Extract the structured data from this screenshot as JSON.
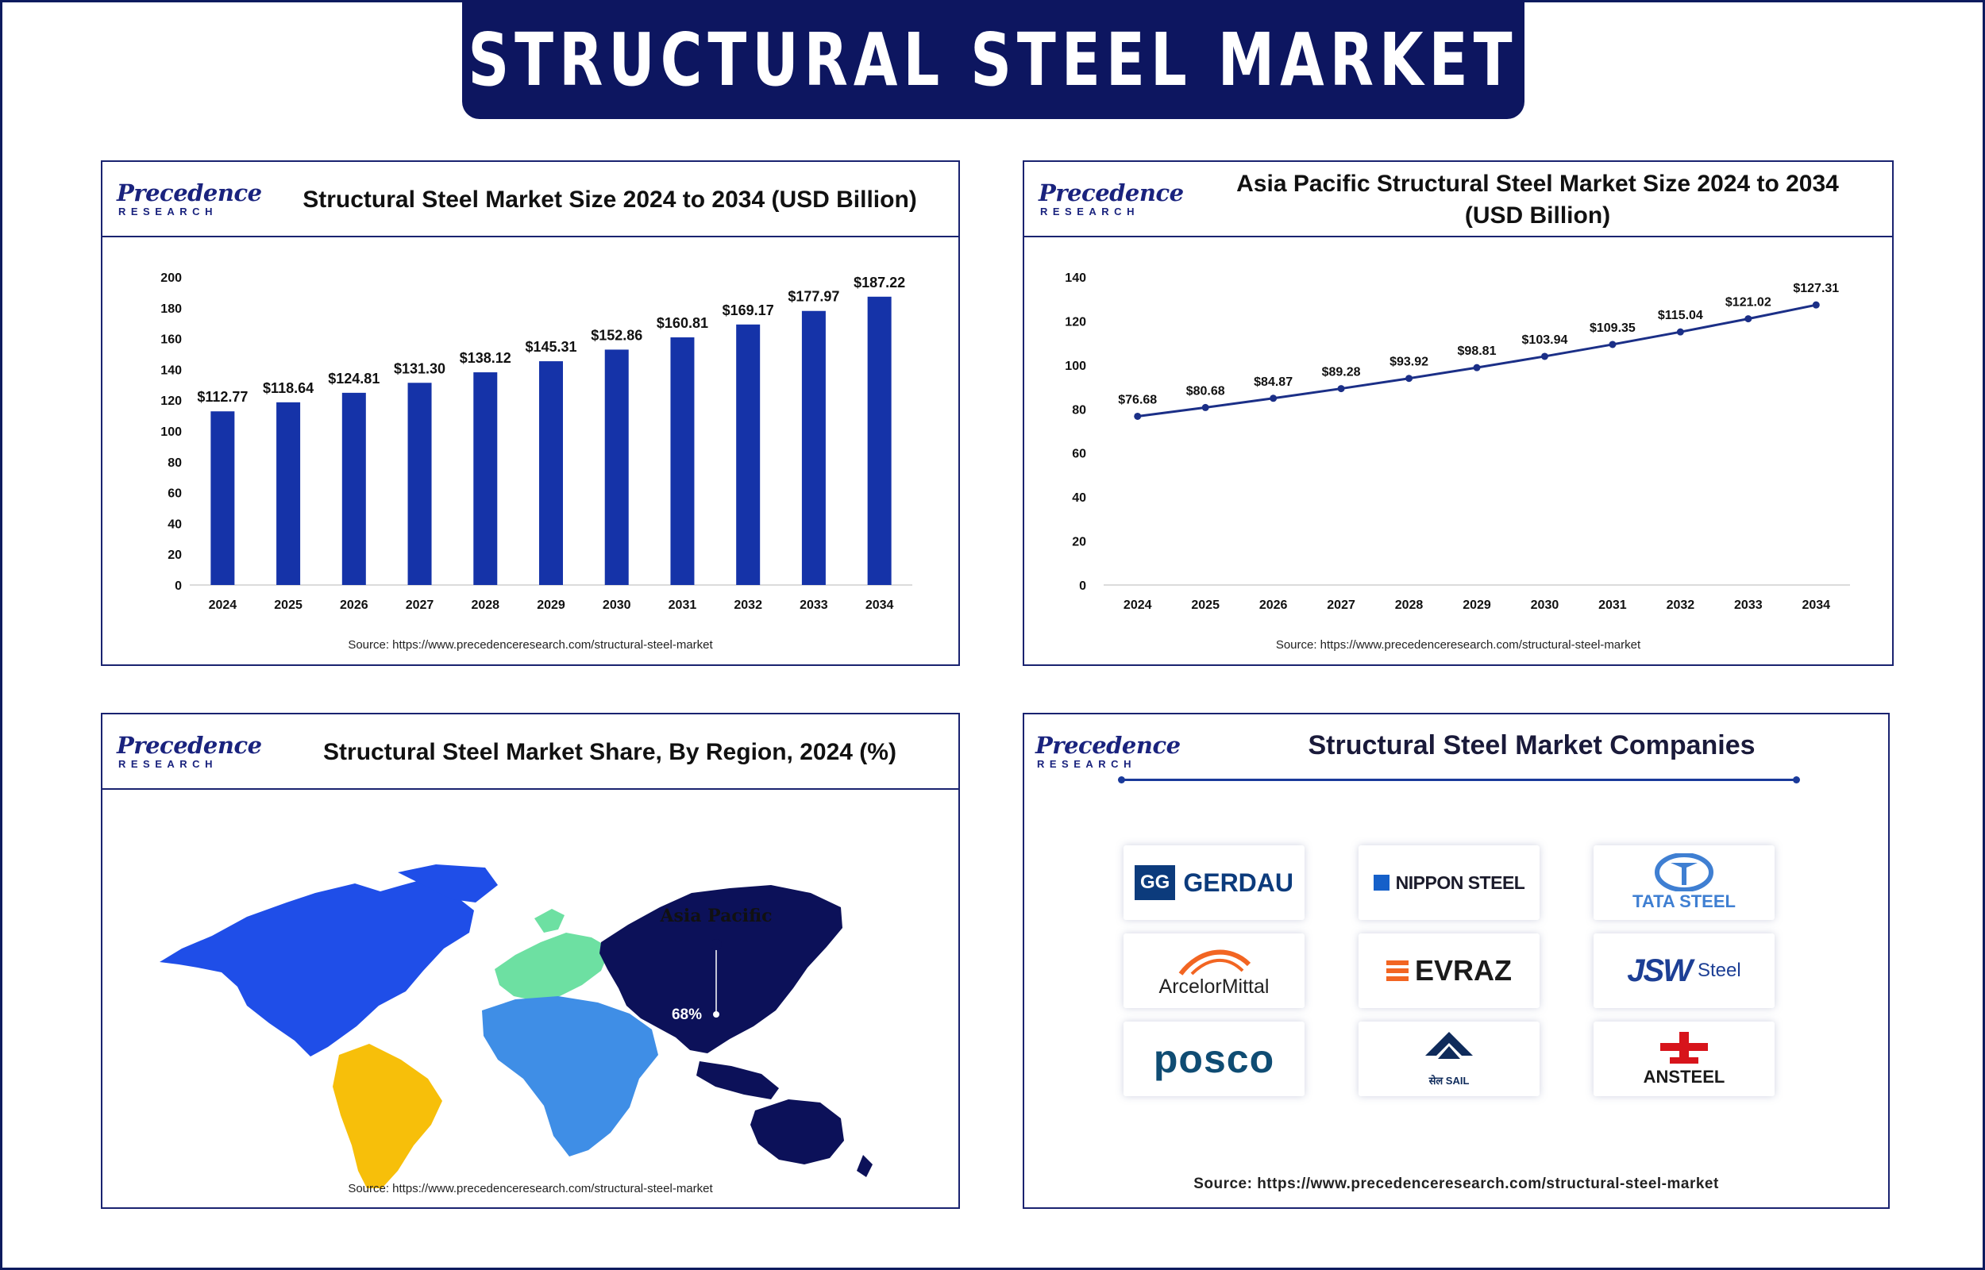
{
  "page_title": "STRUCTURAL STEEL MARKET",
  "brand": {
    "name": "Precedence",
    "sub": "RESEARCH"
  },
  "colors": {
    "navy": "#0d1660",
    "bar": "#1533a8",
    "line": "#1b2f87"
  },
  "panels": {
    "bar": {
      "title": "Structural Steel Market Size 2024 to 2034 (USD Billion)",
      "source": "Source: https://www.precedenceresearch.com/structural-steel-market"
    },
    "line": {
      "title_line1": "Asia Pacific Structural Steel Market Size 2024 to 2034",
      "title_line2": "(USD Billion)",
      "source": "Source: https://www.precedenceresearch.com/structural-steel-market"
    },
    "map": {
      "title": "Structural Steel Market Share, By Region, 2024 (%)",
      "region_label": "Asia Pacific",
      "share_label": "68%",
      "source": "Source: https://www.precedenceresearch.com/structural-steel-market"
    },
    "companies": {
      "title": "Structural Steel Market Companies",
      "source": "Source: https://www.precedenceresearch.com/structural-steel-market",
      "items": [
        {
          "name": "GERDAU",
          "mark": "GG"
        },
        {
          "name": "NIPPON STEEL"
        },
        {
          "name": "TATA STEEL"
        },
        {
          "name": "ArcelorMittal"
        },
        {
          "name": "EVRAZ"
        },
        {
          "name": "JSW",
          "suffix": "Steel"
        },
        {
          "name": "posco"
        },
        {
          "name": "सेल SAIL"
        },
        {
          "name": "ANSTEEL"
        }
      ]
    }
  },
  "chart_data": [
    {
      "type": "bar",
      "title": "Structural Steel Market Size 2024 to 2034 (USD Billion)",
      "categories": [
        "2024",
        "2025",
        "2026",
        "2027",
        "2028",
        "2029",
        "2030",
        "2031",
        "2032",
        "2033",
        "2034"
      ],
      "values": [
        112.77,
        118.64,
        124.81,
        131.3,
        138.12,
        145.31,
        152.86,
        160.81,
        169.17,
        177.97,
        187.22
      ],
      "labels": [
        "$112.77",
        "$118.64",
        "$124.81",
        "$131.30",
        "$138.12",
        "$145.31",
        "$152.86",
        "$160.81",
        "$169.17",
        "$177.97",
        "$187.22"
      ],
      "ylim": [
        0,
        200
      ],
      "yticks": [
        0,
        20,
        40,
        60,
        80,
        100,
        120,
        140,
        160,
        180,
        200
      ],
      "grid": false,
      "color": "#1533a8"
    },
    {
      "type": "line",
      "title": "Asia Pacific Structural Steel Market Size 2024 to 2034 (USD Billion)",
      "categories": [
        "2024",
        "2025",
        "2026",
        "2027",
        "2028",
        "2029",
        "2030",
        "2031",
        "2032",
        "2033",
        "2034"
      ],
      "values": [
        76.68,
        80.68,
        84.87,
        89.28,
        93.92,
        98.81,
        103.94,
        109.35,
        115.04,
        121.02,
        127.31
      ],
      "labels": [
        "$76.68",
        "$80.68",
        "$84.87",
        "$89.28",
        "$93.92",
        "$98.81",
        "$103.94",
        "$109.35",
        "$115.04",
        "$121.02",
        "$127.31"
      ],
      "ylim": [
        0,
        140
      ],
      "yticks": [
        0,
        20,
        40,
        60,
        80,
        100,
        120,
        140
      ],
      "grid": false,
      "color": "#1b2f87"
    },
    {
      "type": "map",
      "title": "Structural Steel Market Share, By Region, 2024 (%)",
      "regions": [
        {
          "name": "Asia Pacific",
          "share": 68,
          "color": "#0c1159"
        },
        {
          "name": "North America",
          "color": "#1f4ee8"
        },
        {
          "name": "Europe",
          "color": "#6de0a2"
        },
        {
          "name": "Latin America",
          "color": "#f7bf0a"
        },
        {
          "name": "Middle East and Africa",
          "color": "#3f8ee6"
        }
      ]
    }
  ]
}
